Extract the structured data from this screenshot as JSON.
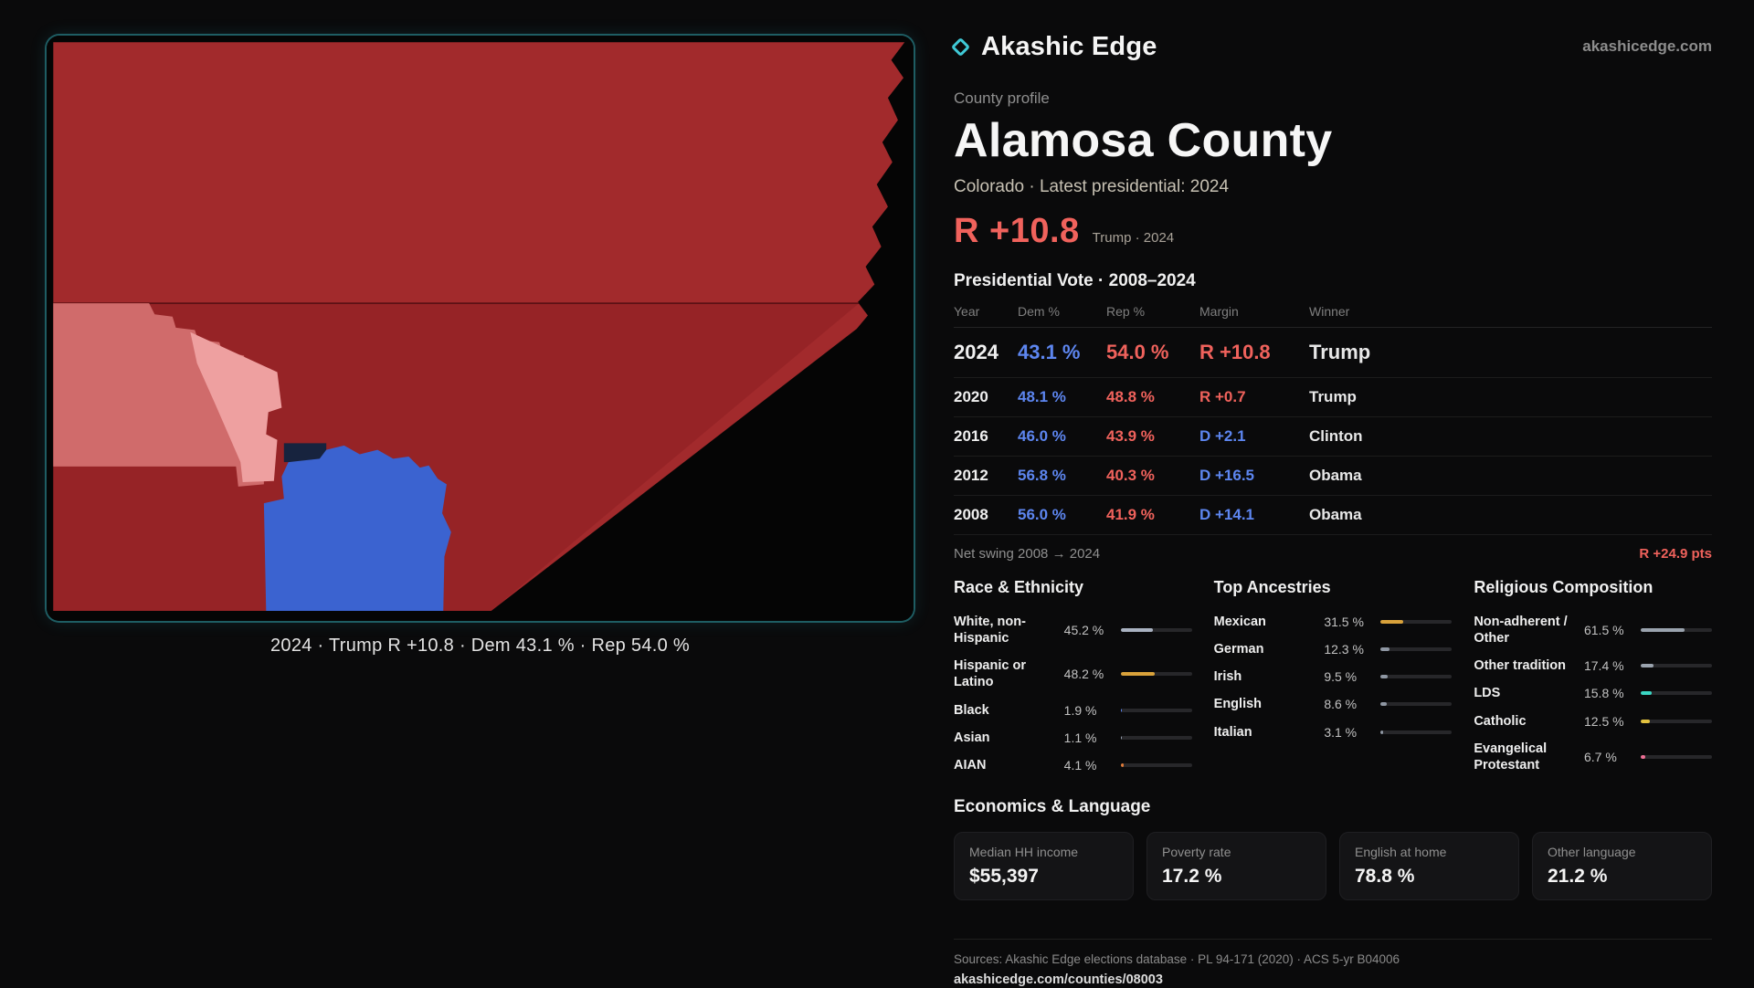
{
  "palette": {
    "teal": "#3fc9d6",
    "dem": "#5d86f0",
    "rep": "#f0625c",
    "map_red": "#a22a2c",
    "map_red_dark": "#8c1e22",
    "map_salmon": "#d06b6b",
    "map_pink": "#eea0a0",
    "map_blue": "#3b63d0",
    "map_navy": "#17233e"
  },
  "header": {
    "brand": "Akashic Edge",
    "site": "akashicedge.com"
  },
  "profile": {
    "kicker": "County profile",
    "title": "Alamosa County",
    "subtitle": "Colorado · Latest presidential: 2024",
    "lean": "R +10.8",
    "lean_context": "Trump · 2024"
  },
  "map": {
    "caption": "2024 · Trump R +10.8 · Dem 43.1 % · Rep 54.0 %"
  },
  "votes": {
    "title": "Presidential Vote · 2008–2024",
    "headers": [
      "Year",
      "Dem %",
      "Rep %",
      "Margin",
      "Winner"
    ],
    "rows": [
      {
        "year": "2024",
        "dem": "43.1 %",
        "rep": "54.0 %",
        "margin": "R +10.8",
        "winner": "Trump",
        "party": "R",
        "latest": true
      },
      {
        "year": "2020",
        "dem": "48.1 %",
        "rep": "48.8 %",
        "margin": "R +0.7",
        "winner": "Trump",
        "party": "R"
      },
      {
        "year": "2016",
        "dem": "46.0 %",
        "rep": "43.9 %",
        "margin": "D +2.1",
        "winner": "Clinton",
        "party": "D"
      },
      {
        "year": "2012",
        "dem": "56.8 %",
        "rep": "40.3 %",
        "margin": "D +16.5",
        "winner": "Obama",
        "party": "D"
      },
      {
        "year": "2008",
        "dem": "56.0 %",
        "rep": "41.9 %",
        "margin": "D +14.1",
        "winner": "Obama",
        "party": "D"
      }
    ],
    "net_swing_label": "Net swing 2008 → 2024",
    "net_swing_value": "R +24.9 pts"
  },
  "demographics": {
    "race": {
      "title": "Race & Ethnicity",
      "items": [
        {
          "label": "White, non-Hispanic",
          "value": "45.2 %",
          "pct": 45.2,
          "color": "#a9b2c1"
        },
        {
          "label": "Hispanic or Latino",
          "value": "48.2 %",
          "pct": 48.2,
          "color": "#d9a23b"
        },
        {
          "label": "Black",
          "value": "1.9 %",
          "pct": 1.9,
          "color": "#5d86f0"
        },
        {
          "label": "Asian",
          "value": "1.1 %",
          "pct": 1.1,
          "color": "#9aa3b2"
        },
        {
          "label": "AIAN",
          "value": "4.1 %",
          "pct": 4.1,
          "color": "#e07b39"
        }
      ]
    },
    "ancestries": {
      "title": "Top Ancestries",
      "items": [
        {
          "label": "Mexican",
          "value": "31.5 %",
          "pct": 31.5,
          "color": "#d9a23b"
        },
        {
          "label": "German",
          "value": "12.3 %",
          "pct": 12.3,
          "color": "#8f97a3"
        },
        {
          "label": "Irish",
          "value": "9.5 %",
          "pct": 9.5,
          "color": "#8f97a3"
        },
        {
          "label": "English",
          "value": "8.6 %",
          "pct": 8.6,
          "color": "#8f97a3"
        },
        {
          "label": "Italian",
          "value": "3.1 %",
          "pct": 3.1,
          "color": "#8f97a3"
        }
      ]
    },
    "religion": {
      "title": "Religious Composition",
      "items": [
        {
          "label": "Non-adherent / Other",
          "value": "61.5 %",
          "pct": 61.5,
          "color": "#9aa3ae"
        },
        {
          "label": "Other tradition",
          "value": "17.4 %",
          "pct": 17.4,
          "color": "#9aa3ae"
        },
        {
          "label": "LDS",
          "value": "15.8 %",
          "pct": 15.8,
          "color": "#3ad6c3"
        },
        {
          "label": "Catholic",
          "value": "12.5 %",
          "pct": 12.5,
          "color": "#e3c23f"
        },
        {
          "label": "Evangelical Protestant",
          "value": "6.7 %",
          "pct": 6.7,
          "color": "#ef7096"
        }
      ]
    }
  },
  "economics": {
    "title": "Economics & Language",
    "cards": [
      {
        "label": "Median HH income",
        "value": "$55,397"
      },
      {
        "label": "Poverty rate",
        "value": "17.2 %"
      },
      {
        "label": "English at home",
        "value": "78.8 %"
      },
      {
        "label": "Other language",
        "value": "21.2 %"
      }
    ]
  },
  "footer": {
    "sources": "Sources: Akashic Edge elections database · PL 94-171 (2020) · ACS 5-yr B04006",
    "permalink": "akashicedge.com/counties/08003"
  }
}
